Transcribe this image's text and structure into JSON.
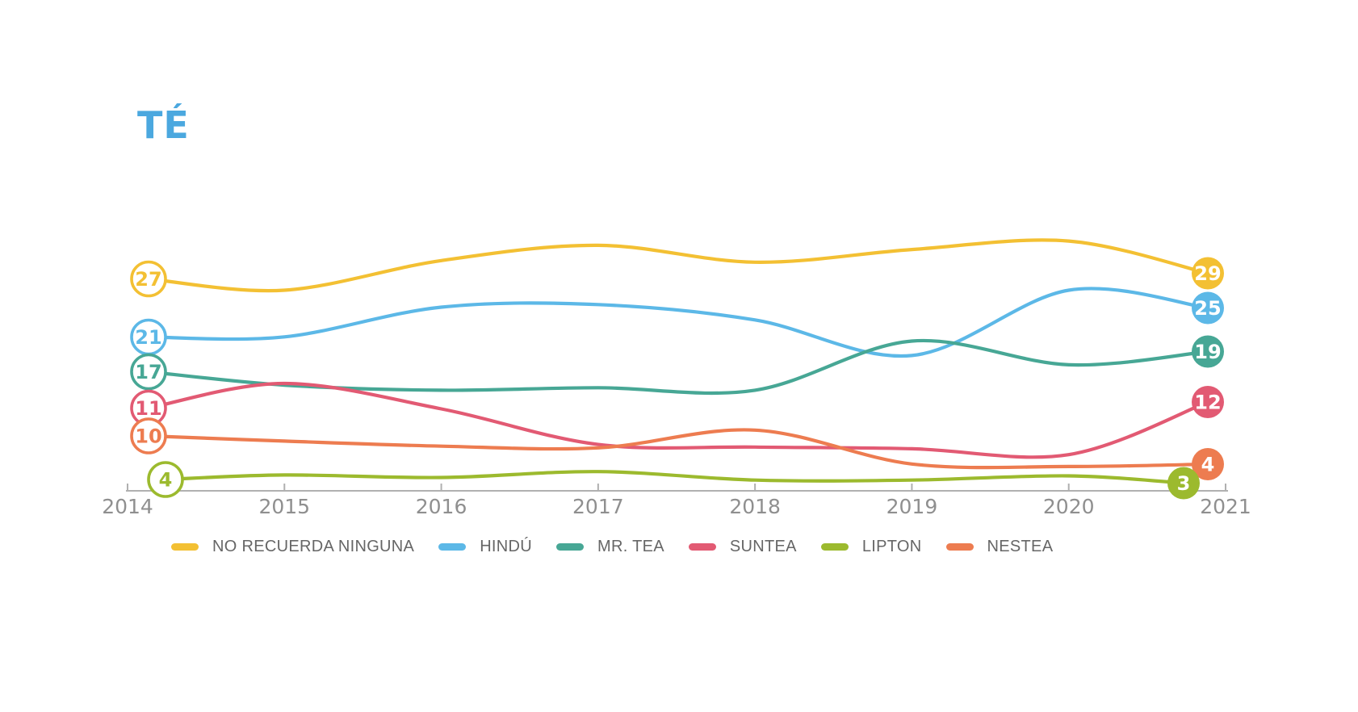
{
  "chart_data": {
    "type": "line",
    "title": "TÉ",
    "title_color": "#4BA8DF",
    "axis_color": "#B0B0B0",
    "tick_label_color": "#8F8F8F",
    "legend_text_color": "#666666",
    "grid": false,
    "y_axis_visible": false,
    "legend_position": "bottom",
    "x": [
      2014,
      2015,
      2016,
      2017,
      2018,
      2019,
      2020,
      2021
    ],
    "x_tick_labels": [
      "2014",
      "2015",
      "2016",
      "2017",
      "2018",
      "2019",
      "2020",
      "2021"
    ],
    "series": [
      {
        "id": "no-recuerda-ninguna",
        "name": "NO RECUERDA NINGUNA",
        "color": "#F3C033",
        "start_value": 27,
        "end_value": 29,
        "values": [
          27,
          27,
          30.5,
          32.3,
          30.3,
          31.8,
          32.8,
          29
        ]
      },
      {
        "id": "hindu",
        "name": "HINDÚ",
        "color": "#5CB8E7",
        "start_value": 21,
        "end_value": 25,
        "values": [
          21,
          21.5,
          25,
          25.3,
          23.5,
          19.3,
          27,
          25
        ]
      },
      {
        "id": "mr-tea",
        "name": "MR. TEA",
        "color": "#47A795",
        "start_value": 17,
        "end_value": 19,
        "values": [
          17,
          15.8,
          15.2,
          15.5,
          15.2,
          21,
          18.2,
          19
        ]
      },
      {
        "id": "suntea",
        "name": "SUNTEA",
        "color": "#E25A73",
        "start_value": 11,
        "end_value": 12,
        "values": [
          11,
          16,
          13,
          8.8,
          8.5,
          8.3,
          7.6,
          12
        ]
      },
      {
        "id": "lipton",
        "name": "LIPTON",
        "color": "#9CBA2E",
        "start_value": 4,
        "end_value": 3,
        "values": [
          4,
          5.2,
          4.9,
          5.6,
          4.6,
          4.6,
          5.1,
          3
        ]
      },
      {
        "id": "nestea",
        "name": "NESTEA",
        "color": "#ED7C50",
        "start_value": 10,
        "end_value": 4,
        "values": [
          10,
          9.2,
          8.6,
          8.4,
          10.5,
          6.5,
          6.2,
          4
        ]
      }
    ]
  }
}
